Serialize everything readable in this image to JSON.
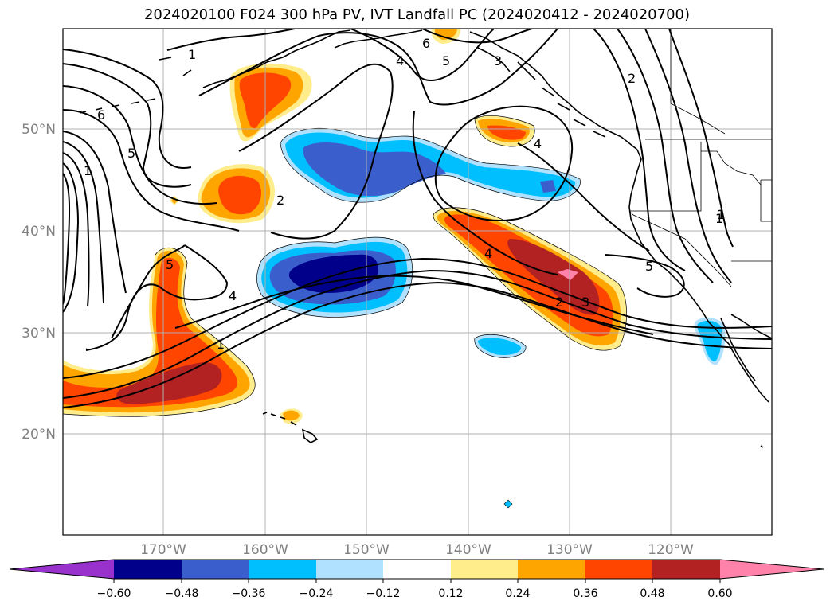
{
  "title": "2024020100 F024 300 hPa PV, IVT Landfall PC (2024020412 - 2024020700)",
  "map": {
    "lat_labels": [
      "50°N",
      "40°N",
      "30°N",
      "20°N"
    ],
    "lon_labels": [
      "170°W",
      "160°W",
      "150°W",
      "140°W",
      "130°W",
      "120°W"
    ],
    "contour_labels": [
      "1",
      "6",
      "5",
      "1",
      "1",
      "2",
      "4",
      "6",
      "5",
      "3",
      "4",
      "2",
      "5",
      "4",
      "1",
      "4",
      "2",
      "3",
      "5",
      "1"
    ]
  },
  "colorbar": {
    "tick_labels": [
      "−0.60",
      "−0.48",
      "−0.36",
      "−0.24",
      "−0.12",
      "0.12",
      "0.24",
      "0.36",
      "0.48",
      "0.60"
    ],
    "colors": [
      "#9932cc",
      "#00008b",
      "#3a5fcd",
      "#00bfff",
      "#b0e2ff",
      "#ffffff",
      "#ffec8b",
      "#ffa500",
      "#ff4500",
      "#b22222",
      "#ff82ab"
    ]
  }
}
